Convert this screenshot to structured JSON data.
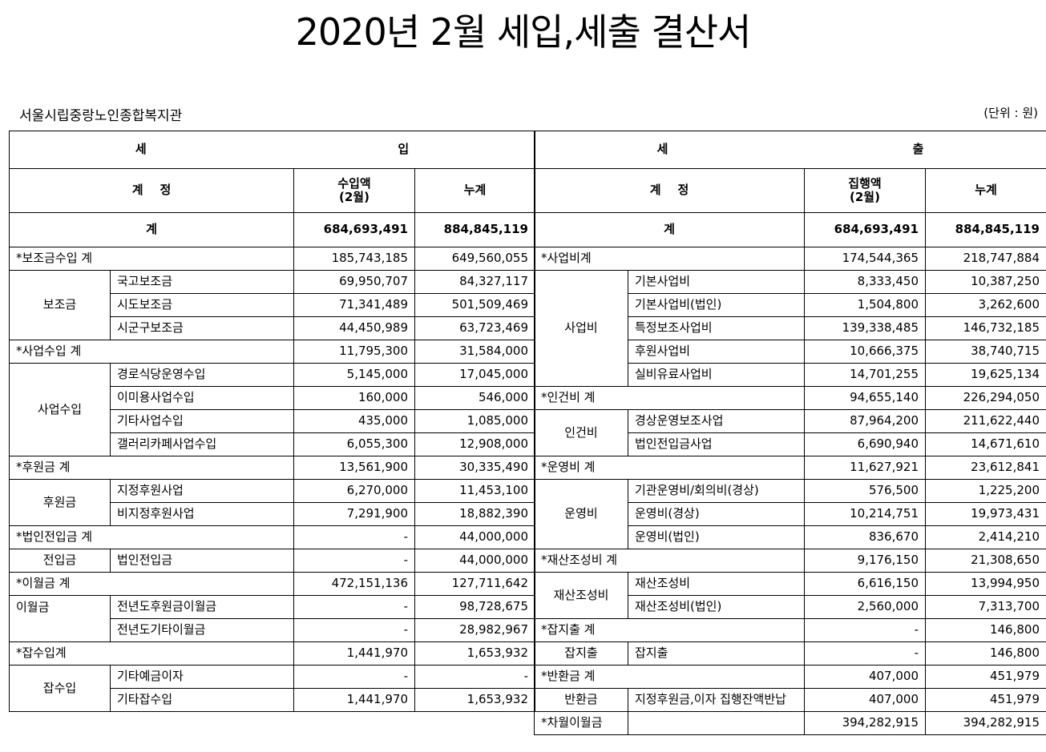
{
  "title": "2020년 2월 세입,세출 결산서",
  "org": "서울시립중랑노인종합복지관",
  "unit": "(단위 : 원)",
  "income": {
    "header_left": "세",
    "header_right": "입",
    "col_account": "계    정",
    "col_amount_l1": "수입액",
    "col_amount_l2": "(2월)",
    "col_cumulative": "누계",
    "total_label": "계",
    "total_amount": "684,693,491",
    "total_cum": "884,845,119",
    "s1": {
      "label": "*보조금수입 계",
      "amount": "185,743,185",
      "cum": "649,560,055"
    },
    "s1_cat": "보조금",
    "s1_items": [
      {
        "name": "국고보조금",
        "amount": "69,950,707",
        "cum": "84,327,117"
      },
      {
        "name": "시도보조금",
        "amount": "71,341,489",
        "cum": "501,509,469"
      },
      {
        "name": "시군구보조금",
        "amount": "44,450,989",
        "cum": "63,723,469"
      }
    ],
    "s2": {
      "label": "*사업수입 계",
      "amount": "11,795,300",
      "cum": "31,584,000"
    },
    "s2_cat": "사업수입",
    "s2_items": [
      {
        "name": "경로식당운영수입",
        "amount": "5,145,000",
        "cum": "17,045,000"
      },
      {
        "name": "이미용사업수입",
        "amount": "160,000",
        "cum": "546,000"
      },
      {
        "name": "기타사업수입",
        "amount": "435,000",
        "cum": "1,085,000"
      },
      {
        "name": "갤러리카페사업수입",
        "amount": "6,055,300",
        "cum": "12,908,000"
      }
    ],
    "s3": {
      "label": "*후원금 계",
      "amount": "13,561,900",
      "cum": "30,335,490"
    },
    "s3_cat": "후원금",
    "s3_items": [
      {
        "name": "지정후원사업",
        "amount": "6,270,000",
        "cum": "11,453,100"
      },
      {
        "name": "비지정후원사업",
        "amount": "7,291,900",
        "cum": "18,882,390"
      }
    ],
    "s4": {
      "label": "*법인전입금 계",
      "amount": "-",
      "cum": "44,000,000"
    },
    "s4_cat": "전입금",
    "s4_items": [
      {
        "name": "법인전입금",
        "amount": "-",
        "cum": "44,000,000"
      }
    ],
    "s5": {
      "label": "*이월금 계",
      "amount": "472,151,136",
      "cum": "127,711,642"
    },
    "s5_cat": "이월금",
    "s5_items": [
      {
        "name": "전년도후원금이월금",
        "amount": "-",
        "cum": "98,728,675"
      },
      {
        "name": "전년도기타이월금",
        "amount": "-",
        "cum": "28,982,967"
      }
    ],
    "s6": {
      "label": "*잡수입계",
      "amount": "1,441,970",
      "cum": "1,653,932"
    },
    "s6_cat": "잡수입",
    "s6_items": [
      {
        "name": "기타예금이자",
        "amount": "-",
        "cum": "-"
      },
      {
        "name": "기타잡수입",
        "amount": "1,441,970",
        "cum": "1,653,932"
      }
    ]
  },
  "expense": {
    "header_left": "세",
    "header_right": "출",
    "col_account": "계    정",
    "col_amount_l1": "집행액",
    "col_amount_l2": "(2월)",
    "col_cumulative": "누계",
    "total_label": "계",
    "total_amount": "684,693,491",
    "total_cum": "884,845,119",
    "s1": {
      "label": "*사업비계",
      "amount": "174,544,365",
      "cum": "218,747,884"
    },
    "s1_cat": "사업비",
    "s1_items": [
      {
        "name": "기본사업비",
        "amount": "8,333,450",
        "cum": "10,387,250"
      },
      {
        "name": "기본사업비(법인)",
        "amount": "1,504,800",
        "cum": "3,262,600"
      },
      {
        "name": "특정보조사업비",
        "amount": "139,338,485",
        "cum": "146,732,185"
      },
      {
        "name": "후원사업비",
        "amount": "10,666,375",
        "cum": "38,740,715"
      },
      {
        "name": "실비유료사업비",
        "amount": "14,701,255",
        "cum": "19,625,134"
      }
    ],
    "s2": {
      "label": "*인건비 계",
      "amount": "94,655,140",
      "cum": "226,294,050"
    },
    "s2_cat": "인건비",
    "s2_items": [
      {
        "name": "경상운영보조사업",
        "amount": "87,964,200",
        "cum": "211,622,440"
      },
      {
        "name": "법인전입금사업",
        "amount": "6,690,940",
        "cum": "14,671,610"
      }
    ],
    "s3": {
      "label": "*운영비 계",
      "amount": "11,627,921",
      "cum": "23,612,841"
    },
    "s3_cat": "운영비",
    "s3_items": [
      {
        "name": "기관운영비/회의비(경상)",
        "amount": "576,500",
        "cum": "1,225,200"
      },
      {
        "name": "운영비(경상)",
        "amount": "10,214,751",
        "cum": "19,973,431"
      },
      {
        "name": "운영비(법인)",
        "amount": "836,670",
        "cum": "2,414,210"
      }
    ],
    "s4": {
      "label": "*재산조성비 계",
      "amount": "9,176,150",
      "cum": "21,308,650"
    },
    "s4_cat": "재산조성비",
    "s4_items": [
      {
        "name": "재산조성비",
        "amount": "6,616,150",
        "cum": "13,994,950"
      },
      {
        "name": "재산조성비(법인)",
        "amount": "2,560,000",
        "cum": "7,313,700"
      }
    ],
    "s5": {
      "label": "*잡지출 계",
      "amount": "-",
      "cum": "146,800"
    },
    "s5_cat": "잡지출",
    "s5_items": [
      {
        "name": "잡지출",
        "amount": "-",
        "cum": "146,800"
      }
    ],
    "s6": {
      "label": "*반환금 계",
      "amount": "407,000",
      "cum": "451,979"
    },
    "s6_cat": "반환금",
    "s6_items": [
      {
        "name": "지정후원금,이자 집행잔액반납",
        "amount": "407,000",
        "cum": "451,979"
      }
    ],
    "s7": {
      "label": "*차월이월금",
      "amount": "394,282,915",
      "cum": "394,282,915"
    }
  }
}
